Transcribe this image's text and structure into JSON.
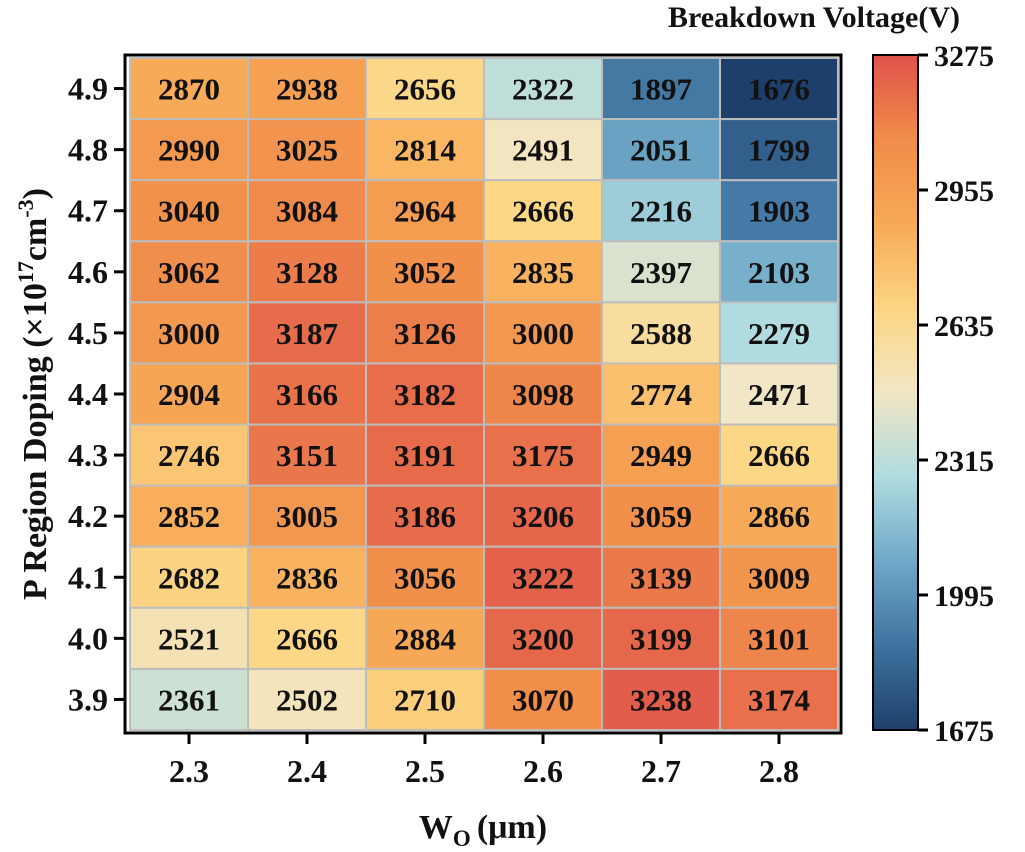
{
  "chart_data": {
    "type": "heatmap",
    "colorbar_title": "Breakdown Voltage(V)",
    "xlabel_main": "W",
    "xlabel_sub": "O",
    "xlabel_unit": "(μm)",
    "ylabel_main": "P Region Doping (×10",
    "ylabel_exp": "17",
    "ylabel_unit": "cm",
    "ylabel_unit_exp": "-3",
    "ylabel_close": ")",
    "x_categories": [
      "2.3",
      "2.4",
      "2.5",
      "2.6",
      "2.7",
      "2.8"
    ],
    "y_categories": [
      "4.9",
      "4.8",
      "4.7",
      "4.6",
      "4.5",
      "4.4",
      "4.3",
      "4.2",
      "4.1",
      "4.0",
      "3.9"
    ],
    "values": [
      [
        2870,
        2938,
        2656,
        2322,
        1897,
        1676
      ],
      [
        2990,
        3025,
        2814,
        2491,
        2051,
        1799
      ],
      [
        3040,
        3084,
        2964,
        2666,
        2216,
        1903
      ],
      [
        3062,
        3128,
        3052,
        2835,
        2397,
        2103
      ],
      [
        3000,
        3187,
        3126,
        3000,
        2588,
        2279
      ],
      [
        2904,
        3166,
        3182,
        3098,
        2774,
        2471
      ],
      [
        2746,
        3151,
        3191,
        3175,
        2949,
        2666
      ],
      [
        2852,
        3005,
        3186,
        3206,
        3059,
        2866
      ],
      [
        2682,
        2836,
        3056,
        3222,
        3139,
        3009
      ],
      [
        2521,
        2666,
        2884,
        3200,
        3199,
        3101
      ],
      [
        2361,
        2502,
        2710,
        3070,
        3238,
        3174
      ]
    ],
    "colorbar_range": [
      1675,
      3275
    ],
    "colorbar_ticks": [
      "3275",
      "2955",
      "2635",
      "2315",
      "1995",
      "1675"
    ],
    "colormap": [
      "#1e3f6b",
      "#3f73a0",
      "#6fa8c8",
      "#b0dce0",
      "#f2e6c4",
      "#fcd683",
      "#f7a957",
      "#f08d4a",
      "#e0524c"
    ]
  }
}
